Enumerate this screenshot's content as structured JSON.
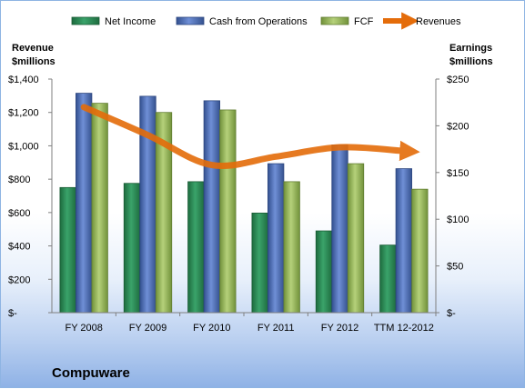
{
  "chart_data": {
    "type": "bar",
    "title": "Compuware",
    "categories": [
      "FY 2008",
      "FY 2009",
      "FY 2010",
      "FY 2011",
      "FY 2012",
      "TTM 12-2012"
    ],
    "left_axis": {
      "label_line1": "Revenue",
      "label_line2": "$millions",
      "min": 0,
      "max": 1400,
      "step": 200,
      "ticks": [
        "$-",
        "$200",
        "$400",
        "$600",
        "$800",
        "$1,000",
        "$1,200",
        "$1,400"
      ]
    },
    "right_axis": {
      "label_line1": "Earnings",
      "label_line2": "$millions",
      "min": 0,
      "max": 250,
      "step": 50,
      "ticks": [
        "$-",
        "$50",
        "$100",
        "$150",
        "$200",
        "$250"
      ]
    },
    "series": [
      {
        "name": "Net Income",
        "axis": "left",
        "kind": "bar",
        "color": "#2e8b57",
        "values": [
          750,
          775,
          785,
          597,
          490,
          405
        ]
      },
      {
        "name": "Cash from Operations",
        "axis": "left",
        "kind": "bar",
        "color": "#4f6db8",
        "values": [
          1315,
          1297,
          1270,
          893,
          1005,
          863
        ]
      },
      {
        "name": "FCF",
        "axis": "left",
        "kind": "bar",
        "color": "#9bbb59",
        "values": [
          1255,
          1200,
          1215,
          785,
          893,
          740
        ]
      },
      {
        "name": "Revenues",
        "axis": "right",
        "kind": "line",
        "color": "#e46c0a",
        "values": [
          220,
          190,
          158,
          167,
          177,
          173
        ]
      }
    ],
    "legend_position": "top",
    "grid": false
  }
}
